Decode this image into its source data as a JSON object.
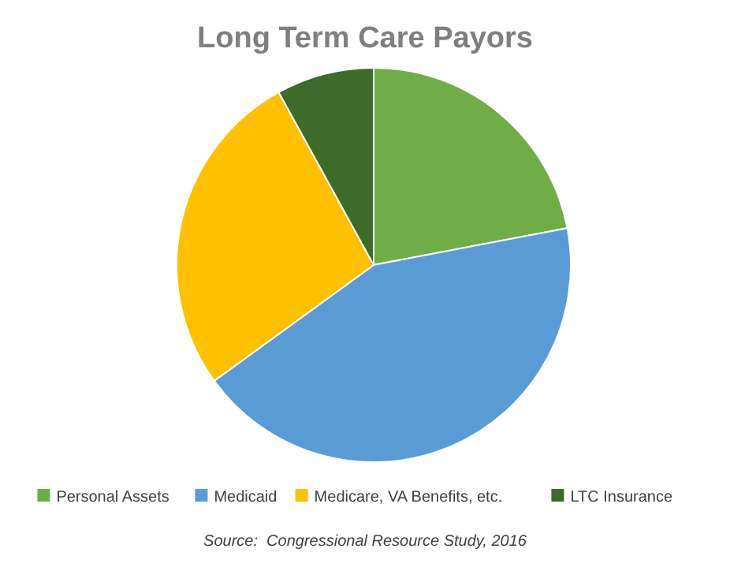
{
  "chart_data": {
    "type": "pie",
    "title": "Long Term Care Payors",
    "categories": [
      "Personal Assets",
      "Medicaid",
      "Medicare, VA Benefits, etc.",
      "LTC Insurance"
    ],
    "values": [
      22,
      43,
      27,
      8
    ],
    "colors": [
      "#70ad47",
      "#5b9bd5",
      "#ffc000",
      "#3d6b2a"
    ],
    "legend": "bottom",
    "annotations": [
      "Source:  Congressional Resource Study, 2016"
    ]
  }
}
